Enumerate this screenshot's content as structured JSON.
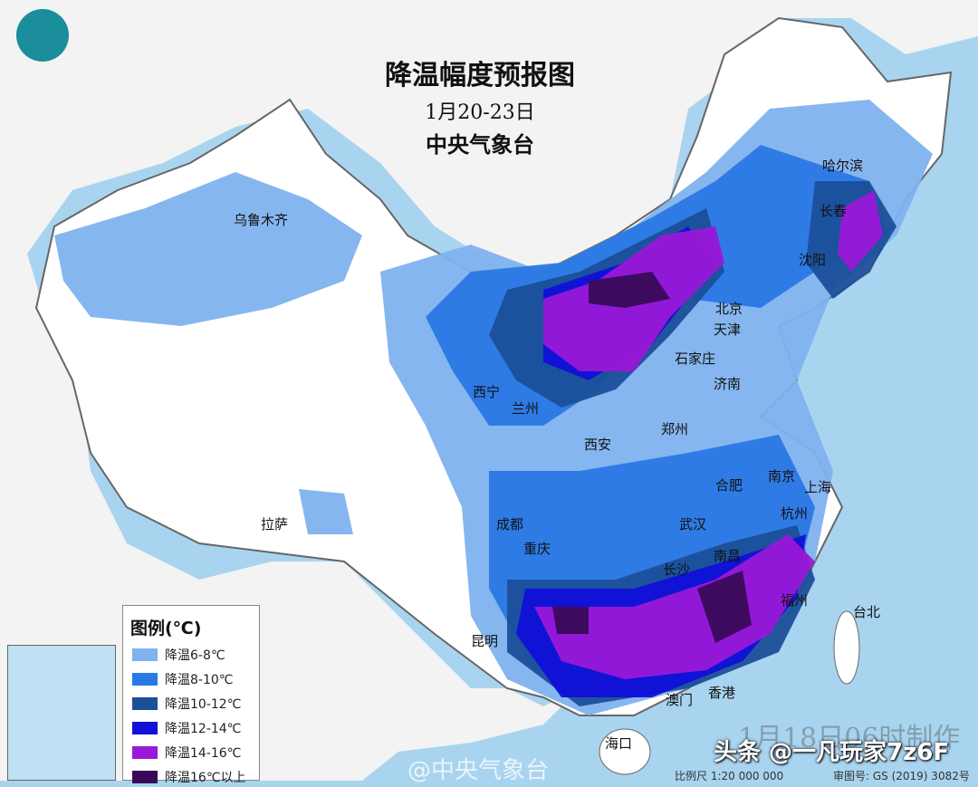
{
  "title": {
    "main": "降温幅度预报图",
    "date": "1月20-23日",
    "agency": "中央气象台"
  },
  "legend": {
    "title": "图例(℃)",
    "items": [
      {
        "label": "降温6-8℃",
        "color": "#7fb2ee"
      },
      {
        "label": "降温8-10℃",
        "color": "#2a78e4"
      },
      {
        "label": "降温10-12℃",
        "color": "#1b4f9a"
      },
      {
        "label": "降温12-14℃",
        "color": "#1010d8"
      },
      {
        "label": "降温14-16℃",
        "color": "#9a18d8"
      },
      {
        "label": "降温16℃以上",
        "color": "#3a0a5a"
      }
    ]
  },
  "cities": [
    "乌鲁木齐",
    "哈尔滨",
    "长春",
    "沈阳",
    "北京",
    "天津",
    "石家庄",
    "济南",
    "西宁",
    "兰州",
    "西安",
    "郑州",
    "合肥",
    "南京",
    "上海",
    "杭州",
    "武汉",
    "成都",
    "重庆",
    "长沙",
    "南昌",
    "福州",
    "台北",
    "拉萨",
    "昆明",
    "澳门",
    "香港",
    "海口"
  ],
  "footer": {
    "made": "1月18日06时制作",
    "scale": "比例尺 1:20 000 000",
    "approval": "审图号: GS (2019) 3082号"
  },
  "watermark": "头条 @一凡玩家7z6F",
  "weibo": "@中央气象台"
}
